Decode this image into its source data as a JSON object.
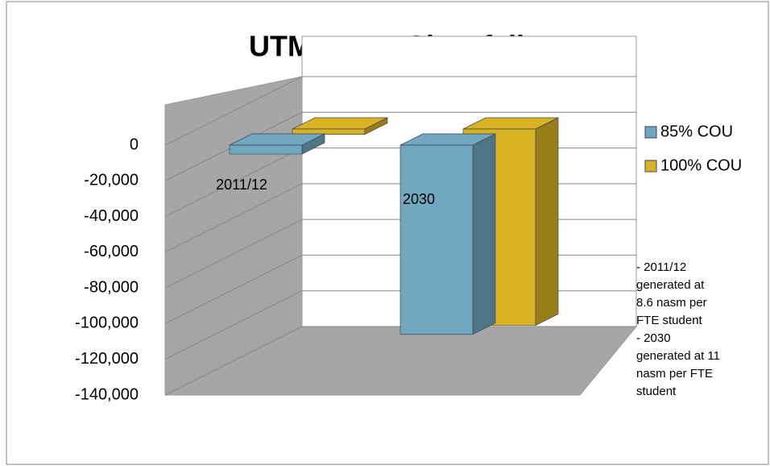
{
  "chart_data": {
    "type": "bar3d",
    "title": "UTM Nasm Shortfall",
    "categories": [
      "2011/12",
      "2030"
    ],
    "series": [
      {
        "name": "85% COU",
        "color": "#6fa8bf",
        "values": [
          -5000,
          -106000
        ]
      },
      {
        "name": "100% COU",
        "color": "#d9b324",
        "values": [
          -3000,
          -110000
        ]
      }
    ],
    "ylim": [
      -140000,
      0
    ],
    "yticks": [
      {
        "value": 0,
        "label": "0"
      },
      {
        "value": -20000,
        "label": "-20,000"
      },
      {
        "value": -40000,
        "label": "-40,000"
      },
      {
        "value": -60000,
        "label": "-60,000"
      },
      {
        "value": -80000,
        "label": "-80,000"
      },
      {
        "value": -100000,
        "label": "-100,000"
      },
      {
        "value": -120000,
        "label": "-120,000"
      },
      {
        "value": -140000,
        "label": "-140,000"
      }
    ],
    "grid": true,
    "legend": "right",
    "annotation": [
      "- 2011/12",
      "generated at",
      "8.6 nasm per",
      "FTE student",
      "- 2030",
      "generated at 11",
      "nasm per FTE",
      "student"
    ]
  }
}
